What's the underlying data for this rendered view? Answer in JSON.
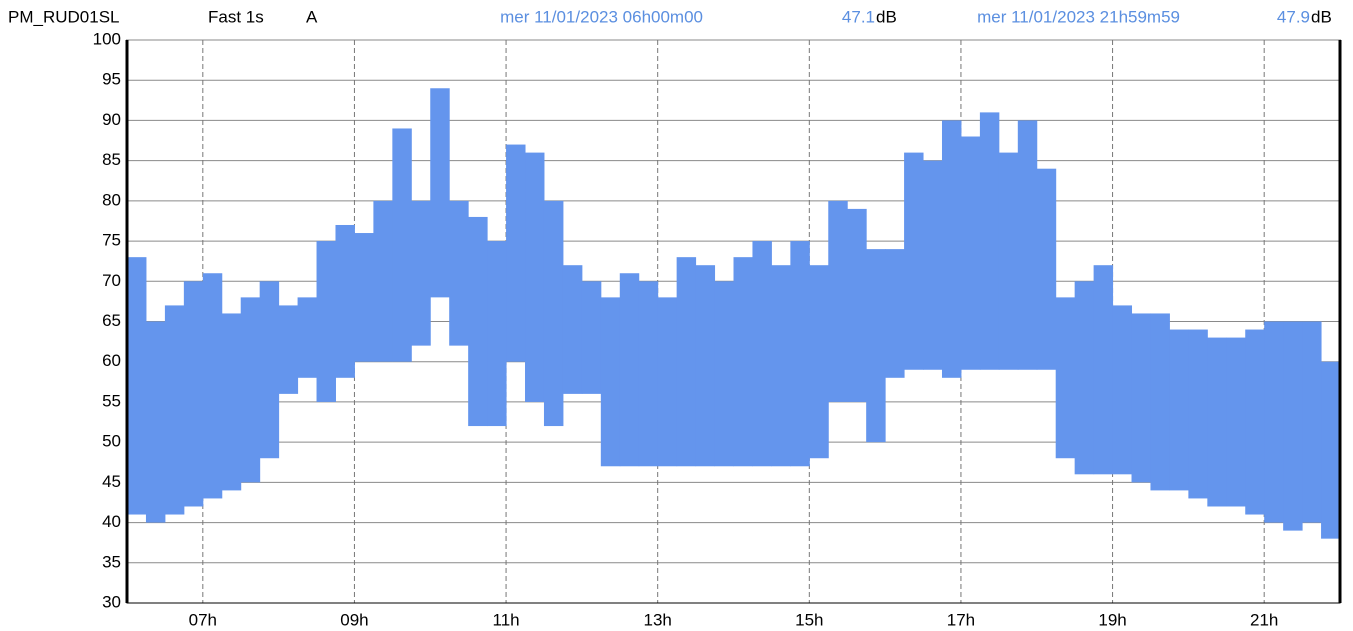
{
  "chart_data": {
    "type": "range",
    "header": {
      "station": "PM_RUD01SL",
      "mode": "Fast 1s",
      "weighting": "A",
      "cursor_start": {
        "time": "mer 11/01/2023 06h00m00",
        "value": 47.1,
        "unit": "dB"
      },
      "cursor_end": {
        "time": "mer 11/01/2023 21h59m59",
        "value": 47.9,
        "unit": "dB"
      }
    },
    "color": "#6495ed",
    "grid": true,
    "xlim": [
      6,
      22
    ],
    "xticks": [
      {
        "value": 7,
        "label": "07h"
      },
      {
        "value": 9,
        "label": "09h"
      },
      {
        "value": 11,
        "label": "11h"
      },
      {
        "value": 13,
        "label": "13h"
      },
      {
        "value": 15,
        "label": "15h"
      },
      {
        "value": 17,
        "label": "17h"
      },
      {
        "value": 19,
        "label": "19h"
      },
      {
        "value": 21,
        "label": "21h"
      }
    ],
    "ylim": [
      30,
      100
    ],
    "yticks": [
      30,
      35,
      40,
      45,
      50,
      55,
      60,
      65,
      70,
      75,
      80,
      85,
      90,
      95,
      100
    ],
    "x": [
      6,
      6.25,
      6.5,
      6.75,
      7,
      7.25,
      7.5,
      7.75,
      8,
      8.25,
      8.5,
      8.75,
      9,
      9.25,
      9.5,
      9.75,
      10,
      10.25,
      10.5,
      10.75,
      11,
      11.25,
      11.5,
      11.75,
      12,
      12.25,
      12.5,
      12.75,
      13,
      13.25,
      13.5,
      13.75,
      14,
      14.25,
      14.5,
      14.75,
      15,
      15.25,
      15.5,
      15.75,
      16,
      16.25,
      16.5,
      16.75,
      17,
      17.25,
      17.5,
      17.75,
      18,
      18.25,
      18.5,
      18.75,
      19,
      19.25,
      19.5,
      19.75,
      20,
      20.25,
      20.5,
      20.75,
      21,
      21.25,
      21.5,
      21.75
    ],
    "high": [
      73,
      65,
      67,
      70,
      71,
      66,
      68,
      70,
      67,
      68,
      75,
      77,
      76,
      80,
      89,
      80,
      94,
      80,
      78,
      75,
      87,
      86,
      80,
      72,
      70,
      68,
      71,
      70,
      68,
      73,
      72,
      70,
      73,
      75,
      72,
      75,
      72,
      80,
      79,
      74,
      74,
      86,
      85,
      90,
      88,
      91,
      86,
      90,
      84,
      68,
      70,
      72,
      67,
      66,
      66,
      64,
      64,
      63,
      63,
      64,
      65,
      65,
      65,
      60
    ],
    "low": [
      41,
      40,
      41,
      42,
      43,
      44,
      45,
      48,
      56,
      58,
      55,
      58,
      60,
      60,
      60,
      62,
      68,
      62,
      52,
      52,
      60,
      55,
      52,
      56,
      56,
      47,
      47,
      47,
      47,
      47,
      47,
      47,
      47,
      47,
      47,
      47,
      48,
      55,
      55,
      50,
      58,
      59,
      59,
      58,
      59,
      59,
      59,
      59,
      59,
      48,
      46,
      46,
      46,
      45,
      44,
      44,
      43,
      42,
      42,
      41,
      40,
      39,
      40,
      38
    ]
  }
}
